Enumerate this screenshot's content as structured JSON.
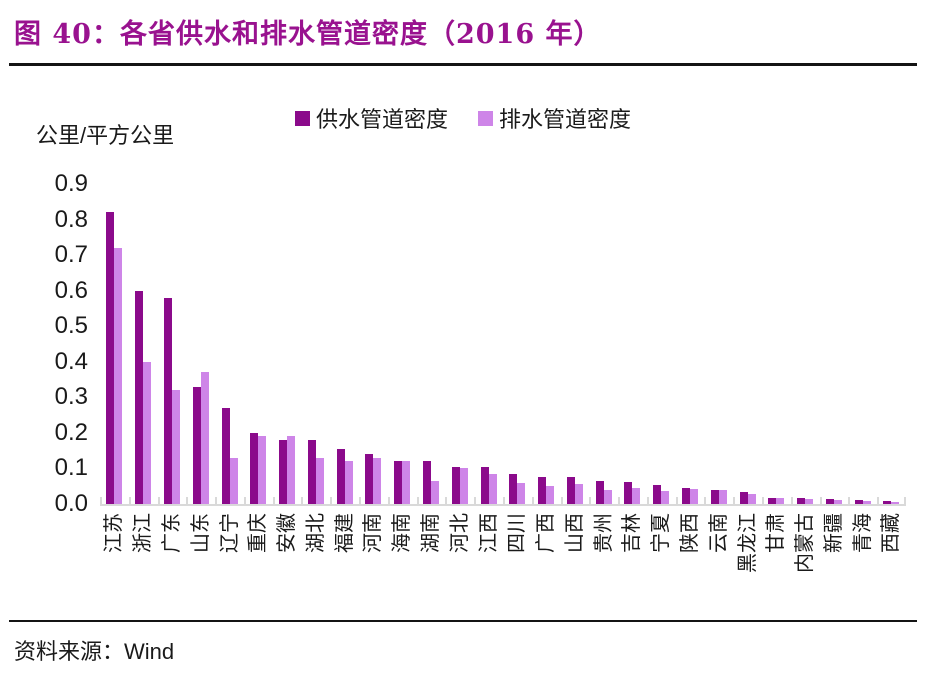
{
  "figure": {
    "title": "图 40：各省供水和排水管道密度（2016 年）",
    "source_label": "资料来源：",
    "source_value": "Wind"
  },
  "colors": {
    "title_accent": "#99128F",
    "supply_bar": "#8B0A8B",
    "drain_bar": "#CE85E8",
    "axis_line": "#D9D9D9",
    "text": "#1A1A1A"
  },
  "chart_data": {
    "type": "bar",
    "title": "各省供水和排水管道密度（2016 年）",
    "unit_label": "公里/平方公里",
    "xlabel": "",
    "ylabel": "公里/平方公里",
    "ylim": [
      0,
      0.9
    ],
    "y_ticks": [
      "0.9",
      "0.8",
      "0.7",
      "0.6",
      "0.5",
      "0.4",
      "0.3",
      "0.2",
      "0.1",
      "0.0"
    ],
    "grid": false,
    "legend_position": "top",
    "categories": [
      "江苏",
      "浙江",
      "广东",
      "山东",
      "辽宁",
      "重庆",
      "安徽",
      "湖北",
      "福建",
      "河南",
      "海南",
      "湖南",
      "河北",
      "江西",
      "四川",
      "广西",
      "山西",
      "贵州",
      "吉林",
      "宁夏",
      "陕西",
      "云南",
      "黑龙江",
      "甘肃",
      "内蒙古",
      "新疆",
      "青海",
      "西藏"
    ],
    "series": [
      {
        "name": "供水管道密度",
        "color": "#8B0A8B",
        "values": [
          0.82,
          0.6,
          0.58,
          0.33,
          0.27,
          0.2,
          0.18,
          0.18,
          0.155,
          0.14,
          0.12,
          0.12,
          0.105,
          0.105,
          0.085,
          0.075,
          0.075,
          0.065,
          0.063,
          0.053,
          0.046,
          0.04,
          0.035,
          0.018,
          0.016,
          0.013,
          0.01,
          0.008
        ]
      },
      {
        "name": "排水管道密度",
        "color": "#CE85E8",
        "values": [
          0.72,
          0.4,
          0.32,
          0.37,
          0.13,
          0.19,
          0.19,
          0.13,
          0.12,
          0.13,
          0.12,
          0.065,
          0.1,
          0.085,
          0.06,
          0.05,
          0.055,
          0.04,
          0.046,
          0.037,
          0.043,
          0.04,
          0.028,
          0.016,
          0.013,
          0.01,
          0.008,
          0.005
        ]
      }
    ]
  }
}
